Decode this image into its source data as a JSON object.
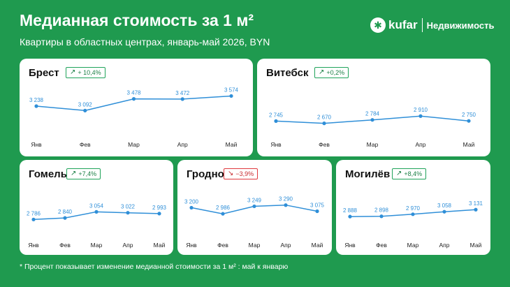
{
  "header": {
    "title": "Медианная стоимость за 1 м²",
    "subtitle": "Квартиры в областных центрах, январь-май 2026, BYN"
  },
  "logo": {
    "brand": "kufar",
    "section": "Недвижимость"
  },
  "footnote": "* Процент показывает изменение медианной стоимости за 1 м² : май к январю",
  "colors": {
    "background": "#1f9a4f",
    "line": "#2f8fd8",
    "label": "#2f8fd8",
    "badge_positive": "#20a35a",
    "badge_negative": "#e0393e"
  },
  "chart_data": [
    {
      "type": "line",
      "title": "Брест",
      "badge": "+ 10,4%",
      "direction": "up",
      "categories": [
        "Янв",
        "Фев",
        "Мар",
        "Апр",
        "Май"
      ],
      "values": [
        3238,
        3092,
        3478,
        3472,
        3574
      ],
      "value_labels": [
        "3 238",
        "3 092",
        "3 478",
        "3 472",
        "3 574"
      ]
    },
    {
      "type": "line",
      "title": "Витебск",
      "badge": "+0,2%",
      "direction": "up",
      "categories": [
        "Янв",
        "Фев",
        "Мар",
        "Апр",
        "Май"
      ],
      "values": [
        2745,
        2670,
        2784,
        2910,
        2750
      ],
      "value_labels": [
        "2 745",
        "2 670",
        "2 784",
        "2 910",
        "2 750"
      ]
    },
    {
      "type": "line",
      "title": "Гомель",
      "badge": "+7,4%",
      "direction": "up",
      "categories": [
        "Янв",
        "Фев",
        "Мар",
        "Апр",
        "Май"
      ],
      "values": [
        2786,
        2840,
        3054,
        3022,
        2993
      ],
      "value_labels": [
        "2 786",
        "2 840",
        "3 054",
        "3 022",
        "2 993"
      ]
    },
    {
      "type": "line",
      "title": "Гродно",
      "badge": "−3,9%",
      "direction": "down",
      "categories": [
        "Янв",
        "Фев",
        "Мар",
        "Апр",
        "Май"
      ],
      "values": [
        3200,
        2986,
        3249,
        3290,
        3075
      ],
      "value_labels": [
        "3 200",
        "2 986",
        "3 249",
        "3 290",
        "3 075"
      ]
    },
    {
      "type": "line",
      "title": "Могилёв",
      "badge": "+8,4%",
      "direction": "up",
      "categories": [
        "Янв",
        "Фев",
        "Мар",
        "Апр",
        "Май"
      ],
      "values": [
        2888,
        2898,
        2970,
        3058,
        3131
      ],
      "value_labels": [
        "2 888",
        "2 898",
        "2 970",
        "3 058",
        "3 131"
      ]
    }
  ]
}
